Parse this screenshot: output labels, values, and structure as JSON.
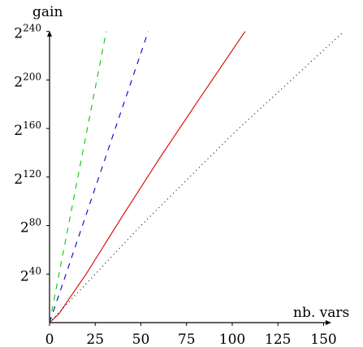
{
  "chart_data": {
    "type": "line",
    "xlabel": "nb. vars",
    "ylabel": "gain",
    "xlim": [
      0,
      160
    ],
    "ylim": [
      0,
      246
    ],
    "y_scale": "log2",
    "x_ticks": [
      0,
      25,
      50,
      75,
      100,
      125,
      150
    ],
    "x_tick_labels": [
      "0",
      "25",
      "50",
      "75",
      "100",
      "125",
      "150"
    ],
    "y_ticks": [
      40,
      80,
      120,
      160,
      200,
      240
    ],
    "y_tick_base": "2",
    "y_tick_exponents": [
      "40",
      "80",
      "120",
      "160",
      "200",
      "240"
    ],
    "grid": false,
    "legend": "none",
    "series": [
      {
        "x": [
          0,
          31
        ],
        "y": [
          0,
          240
        ],
        "color": "#00cc00",
        "dash": "dashed"
      },
      {
        "x": [
          0,
          54
        ],
        "y": [
          0,
          240
        ],
        "color": "#0000cc",
        "dash": "dashed"
      },
      {
        "x": [
          0,
          5,
          10,
          20,
          40,
          60,
          80,
          107
        ],
        "y": [
          0,
          7,
          18,
          40,
          88,
          135,
          180,
          240
        ],
        "color": "#dd0000",
        "dash": "solid"
      },
      {
        "x": [
          0,
          50,
          100,
          161
        ],
        "y": [
          0,
          80,
          155,
          240
        ],
        "color": "#000000",
        "dash": "dotted"
      }
    ]
  }
}
